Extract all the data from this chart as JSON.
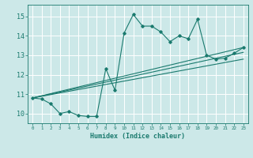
{
  "title": "",
  "xlabel": "Humidex (Indice chaleur)",
  "bg_color": "#cce8e8",
  "grid_color": "#ffffff",
  "line_color": "#1a7a6e",
  "xlim": [
    -0.5,
    23.5
  ],
  "ylim": [
    9.5,
    15.6
  ],
  "yticks": [
    10,
    11,
    12,
    13,
    14,
    15
  ],
  "xticks": [
    0,
    1,
    2,
    3,
    4,
    5,
    6,
    7,
    8,
    9,
    10,
    11,
    12,
    13,
    14,
    15,
    16,
    17,
    18,
    19,
    20,
    21,
    22,
    23
  ],
  "line1_x": [
    0,
    1,
    2,
    3,
    4,
    5,
    6,
    7,
    8,
    9,
    10,
    11,
    12,
    13,
    14,
    15,
    16,
    17,
    18,
    19,
    20,
    21,
    22,
    23
  ],
  "line1_y": [
    10.8,
    10.75,
    10.5,
    10.0,
    10.1,
    9.9,
    9.85,
    9.85,
    12.3,
    11.2,
    14.15,
    15.1,
    14.5,
    14.5,
    14.2,
    13.7,
    14.0,
    13.85,
    14.85,
    13.0,
    12.8,
    12.85,
    13.1,
    13.4
  ],
  "line2_x": [
    0,
    23
  ],
  "line2_y": [
    10.8,
    13.4
  ],
  "line3_x": [
    0,
    23
  ],
  "line3_y": [
    10.8,
    12.8
  ],
  "line4_x": [
    0,
    23
  ],
  "line4_y": [
    10.8,
    13.15
  ]
}
